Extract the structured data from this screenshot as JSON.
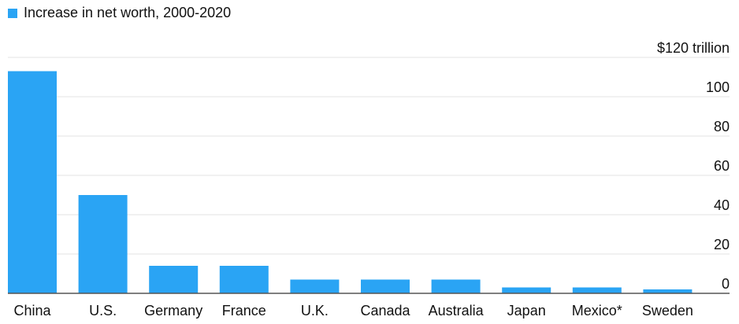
{
  "colors": {
    "bar": "#2aa4f4"
  },
  "chart_data": {
    "type": "bar",
    "legend": "Increase in net worth, 2000-2020",
    "unit_label": "$120 trillion",
    "categories": [
      "China",
      "U.S.",
      "Germany",
      "France",
      "U.K.",
      "Canada",
      "Australia",
      "Japan",
      "Mexico*",
      "Sweden"
    ],
    "series": [
      {
        "name": "Increase in net worth, 2000-2020",
        "values": [
          113,
          50,
          14,
          14,
          7,
          7,
          7,
          3,
          3,
          2
        ]
      }
    ],
    "y_ticks": [
      0,
      20,
      40,
      60,
      80,
      100,
      120
    ],
    "ylim": [
      0,
      120
    ],
    "grid": true,
    "legend_position": "top-left",
    "y_axis_position": "right"
  }
}
